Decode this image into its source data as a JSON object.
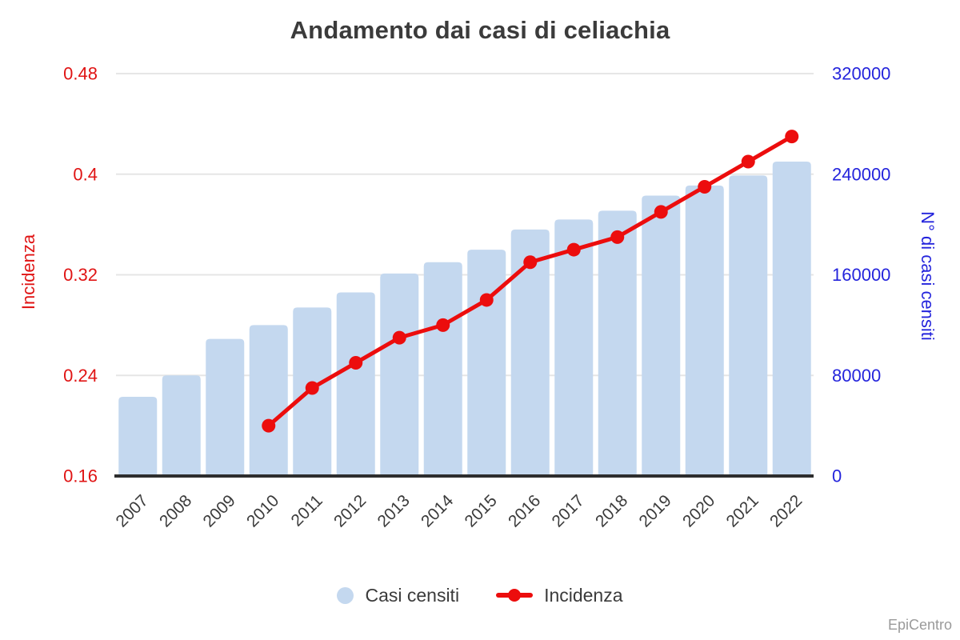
{
  "title": "Andamento dai casi di celiachia",
  "watermark": "EpiCentro",
  "colors": {
    "bar": "#c4d8ef",
    "line": "#ec0d0d",
    "left_axis_text": "#e01414",
    "right_axis_text": "#2424dc",
    "category_text": "#3b3b3b",
    "title_text": "#3b3b3b",
    "grid": "#e6e6e6",
    "axis_line": "#2e2e2e",
    "legend_text": "#3b3b3b",
    "watermark_text": "#9a9a9a"
  },
  "chart_data": {
    "type": "bar",
    "subtype": "combo-bar-line-dual-axis",
    "title": "Andamento dai casi di celiachia",
    "categories": [
      "2007",
      "2008",
      "2009",
      "2010",
      "2011",
      "2012",
      "2013",
      "2014",
      "2015",
      "2016",
      "2017",
      "2018",
      "2019",
      "2020",
      "2021",
      "2022"
    ],
    "series": [
      {
        "name": "Casi censiti",
        "type": "bar",
        "axis": "right",
        "color": "#c4d8ef",
        "values": [
          63000,
          80000,
          109000,
          120000,
          134000,
          146000,
          161000,
          170000,
          180000,
          196000,
          204000,
          211000,
          223000,
          231000,
          239000,
          250000
        ]
      },
      {
        "name": "Incidenza",
        "type": "line",
        "axis": "left",
        "color": "#ec0d0d",
        "values": [
          null,
          null,
          null,
          0.2,
          0.23,
          0.25,
          0.27,
          0.28,
          0.3,
          0.33,
          0.34,
          0.35,
          0.37,
          0.39,
          0.41,
          0.43
        ]
      }
    ],
    "left_axis": {
      "label": "Incidenza",
      "min": 0.16,
      "max": 0.48,
      "tick_labels": [
        "0.16",
        "0.24",
        "0.32",
        "0.4",
        "0.48"
      ]
    },
    "right_axis": {
      "label": "N° di casi censiti",
      "min": 0,
      "max": 320000,
      "tick_labels": [
        "0",
        "80000",
        "160000",
        "240000",
        "320000"
      ]
    },
    "legend": {
      "position": "bottom",
      "items": [
        {
          "label": "Casi censiti",
          "marker": "circle",
          "color": "#c4d8ef"
        },
        {
          "label": "Incidenza",
          "marker": "line-dot",
          "color": "#ec0d0d"
        }
      ]
    },
    "grid": true,
    "x_tick_rotation": -45
  }
}
